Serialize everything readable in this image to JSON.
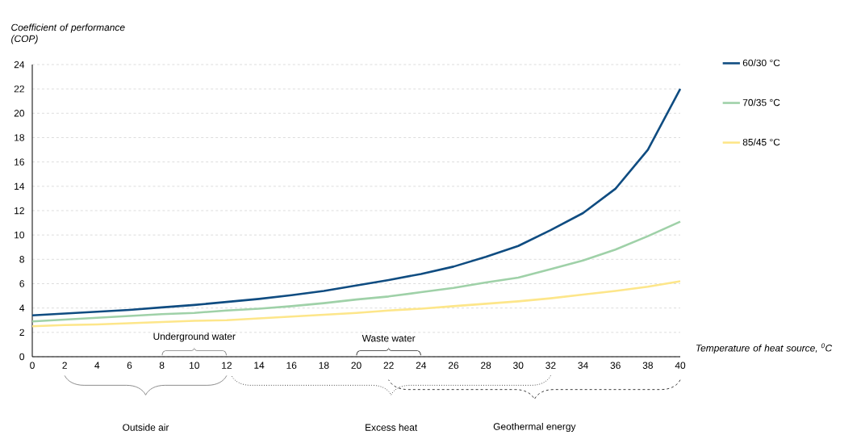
{
  "chart_data": {
    "type": "line",
    "ylabel": "Coefficient of performance (COP)",
    "xlabel": "Temperature of heat source, $^{0}$C",
    "x": [
      0,
      2,
      4,
      6,
      8,
      10,
      12,
      14,
      16,
      18,
      20,
      22,
      24,
      26,
      28,
      30,
      32,
      34,
      36,
      38,
      40
    ],
    "series": [
      {
        "name": "60/30 °C",
        "color": "#0f4c81",
        "values": [
          3.4,
          3.55,
          3.7,
          3.85,
          4.05,
          4.25,
          4.5,
          4.75,
          5.05,
          5.4,
          5.85,
          6.3,
          6.8,
          7.4,
          8.2,
          9.1,
          10.4,
          11.8,
          13.8,
          17.0,
          22.0
        ]
      },
      {
        "name": "70/35 °C",
        "color": "#9fd1a8",
        "values": [
          2.9,
          3.05,
          3.2,
          3.35,
          3.5,
          3.6,
          3.8,
          3.95,
          4.15,
          4.4,
          4.7,
          4.95,
          5.3,
          5.65,
          6.1,
          6.5,
          7.2,
          7.9,
          8.8,
          9.9,
          11.1
        ]
      },
      {
        "name": "85/45 °C",
        "color": "#fde68a",
        "values": [
          2.5,
          2.6,
          2.65,
          2.75,
          2.85,
          2.95,
          3.0,
          3.15,
          3.3,
          3.45,
          3.6,
          3.8,
          3.95,
          4.15,
          4.35,
          4.55,
          4.8,
          5.1,
          5.4,
          5.75,
          6.2
        ]
      }
    ],
    "xlim": [
      0,
      40
    ],
    "ylim": [
      0,
      24
    ],
    "xticks": [
      0,
      2,
      4,
      6,
      8,
      10,
      12,
      14,
      16,
      18,
      20,
      22,
      24,
      26,
      28,
      30,
      32,
      34,
      36,
      38,
      40
    ],
    "yticks": [
      0,
      2,
      4,
      6,
      8,
      10,
      12,
      14,
      16,
      18,
      20,
      22,
      24
    ],
    "annotations": [
      "Underground water",
      "Waste water",
      "Outside air",
      "Excess heat",
      "Geothermal energy"
    ],
    "grid": "y",
    "legend": "right"
  }
}
